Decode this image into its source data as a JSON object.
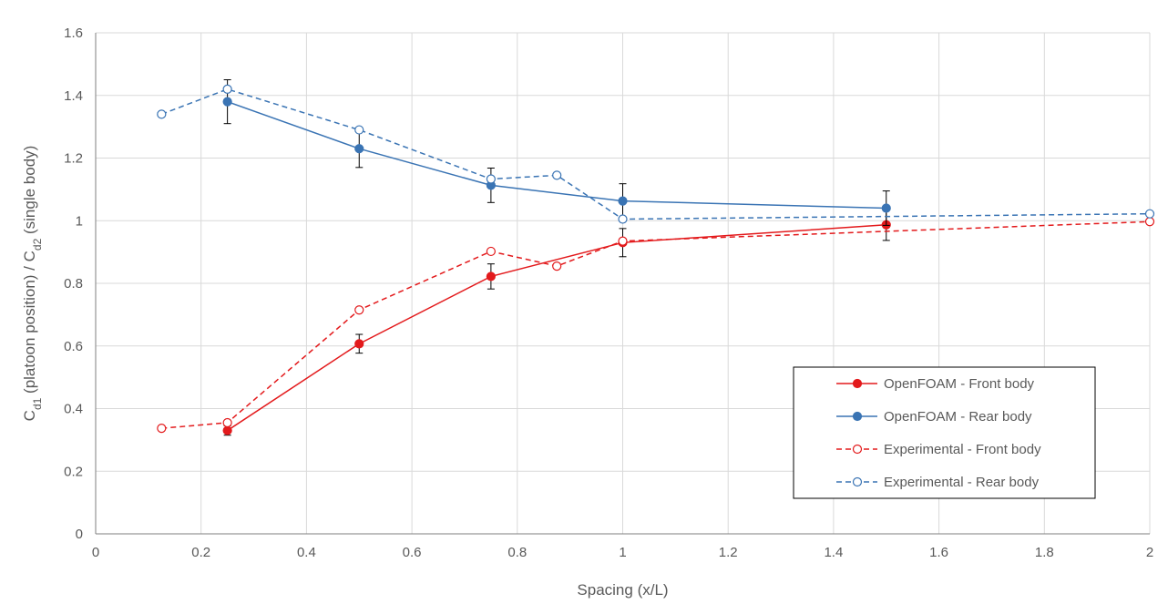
{
  "chart_data": {
    "type": "line",
    "title": "",
    "xlabel": "Spacing (x/L)",
    "ylabel_parts": {
      "main1": "C",
      "sub1": "d1",
      "mid": " (platoon position) / C",
      "sub2": "d2",
      "tail": " (single body)"
    },
    "xlim": [
      0,
      2
    ],
    "ylim": [
      0,
      1.6
    ],
    "x_ticks": [
      "0",
      "0.2",
      "0.4",
      "0.6",
      "0.8",
      "1",
      "1.2",
      "1.4",
      "1.6",
      "1.8",
      "2"
    ],
    "y_ticks": [
      "0",
      "0.2",
      "0.4",
      "0.6",
      "0.8",
      "1",
      "1.2",
      "1.4",
      "1.6"
    ],
    "grid": true,
    "legend_position": "bottom-right",
    "series": [
      {
        "name": "OpenFOAM - Front body",
        "color": "#e31a1c",
        "line_style": "solid",
        "marker": "filled-circle",
        "x": [
          0.25,
          0.5,
          0.75,
          1.0,
          1.5
        ],
        "y": [
          0.33,
          0.607,
          0.822,
          0.93,
          0.987
        ],
        "error": [
          0.015,
          0.03,
          0.04,
          0.045,
          0.05
        ]
      },
      {
        "name": "OpenFOAM - Rear body",
        "color": "#3a74b4",
        "line_style": "solid",
        "marker": "filled-circle",
        "x": [
          0.25,
          0.5,
          0.75,
          1.0,
          1.5
        ],
        "y": [
          1.38,
          1.23,
          1.113,
          1.063,
          1.04
        ],
        "error": [
          0.07,
          0.06,
          0.055,
          0.055,
          0.055
        ]
      },
      {
        "name": "Experimental - Front body",
        "color": "#e31a1c",
        "line_style": "dashed",
        "marker": "open-circle",
        "x": [
          0.125,
          0.25,
          0.5,
          0.75,
          0.875,
          1.0,
          2.0
        ],
        "y": [
          0.337,
          0.355,
          0.715,
          0.902,
          0.855,
          0.935,
          0.997
        ]
      },
      {
        "name": "Experimental - Rear body",
        "color": "#3a74b4",
        "line_style": "dashed",
        "marker": "open-circle",
        "x": [
          0.125,
          0.25,
          0.5,
          0.75,
          0.875,
          1.0,
          2.0
        ],
        "y": [
          1.34,
          1.42,
          1.29,
          1.133,
          1.145,
          1.005,
          1.022
        ]
      }
    ],
    "colors": {
      "grid": "#d9d9d9",
      "axis": "#7f7f7f",
      "text": "#595959",
      "error_bar": "#000000"
    }
  }
}
